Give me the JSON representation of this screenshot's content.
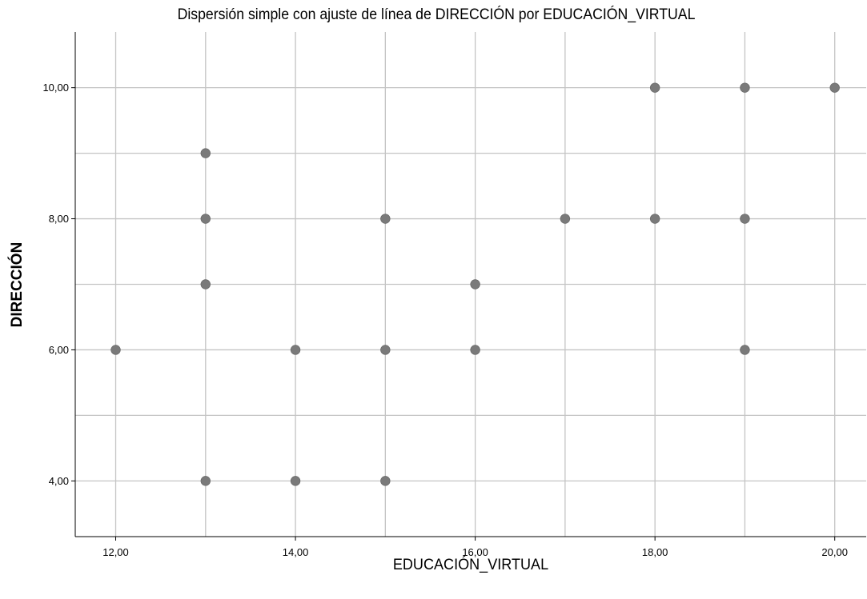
{
  "chart_data": {
    "type": "scatter",
    "title": "Dispersión simple con ajuste de línea de DIRECCIÓN por EDUCACIÓN_VIRTUAL",
    "xlabel": "EDUCACIÓN_VIRTUAL",
    "ylabel": "DIRECCIÓN",
    "xlim": [
      11.55,
      20.35
    ],
    "ylim": [
      3.15,
      10.85
    ],
    "xticks": [
      12,
      14,
      16,
      18,
      20
    ],
    "yticks": [
      4,
      6,
      8,
      10
    ],
    "xtick_labels": [
      "12,00",
      "14,00",
      "16,00",
      "18,00",
      "20,00"
    ],
    "ytick_labels": [
      "4,00",
      "6,00",
      "8,00",
      "10,00"
    ],
    "x_gridlines": [
      12,
      13,
      14,
      15,
      16,
      17,
      18,
      19,
      20
    ],
    "y_gridlines": [
      4,
      5,
      6,
      7,
      8,
      9,
      10
    ],
    "grid": true,
    "marker_color": "#7a7a7a",
    "points": [
      {
        "x": 12,
        "y": 6
      },
      {
        "x": 13,
        "y": 4
      },
      {
        "x": 13,
        "y": 7
      },
      {
        "x": 13,
        "y": 8
      },
      {
        "x": 13,
        "y": 9
      },
      {
        "x": 14,
        "y": 4
      },
      {
        "x": 14,
        "y": 6
      },
      {
        "x": 15,
        "y": 4
      },
      {
        "x": 15,
        "y": 6
      },
      {
        "x": 15,
        "y": 8
      },
      {
        "x": 16,
        "y": 6
      },
      {
        "x": 16,
        "y": 7
      },
      {
        "x": 17,
        "y": 8
      },
      {
        "x": 18,
        "y": 8
      },
      {
        "x": 18,
        "y": 10
      },
      {
        "x": 19,
        "y": 6
      },
      {
        "x": 19,
        "y": 8
      },
      {
        "x": 19,
        "y": 10
      },
      {
        "x": 20,
        "y": 10
      }
    ]
  }
}
